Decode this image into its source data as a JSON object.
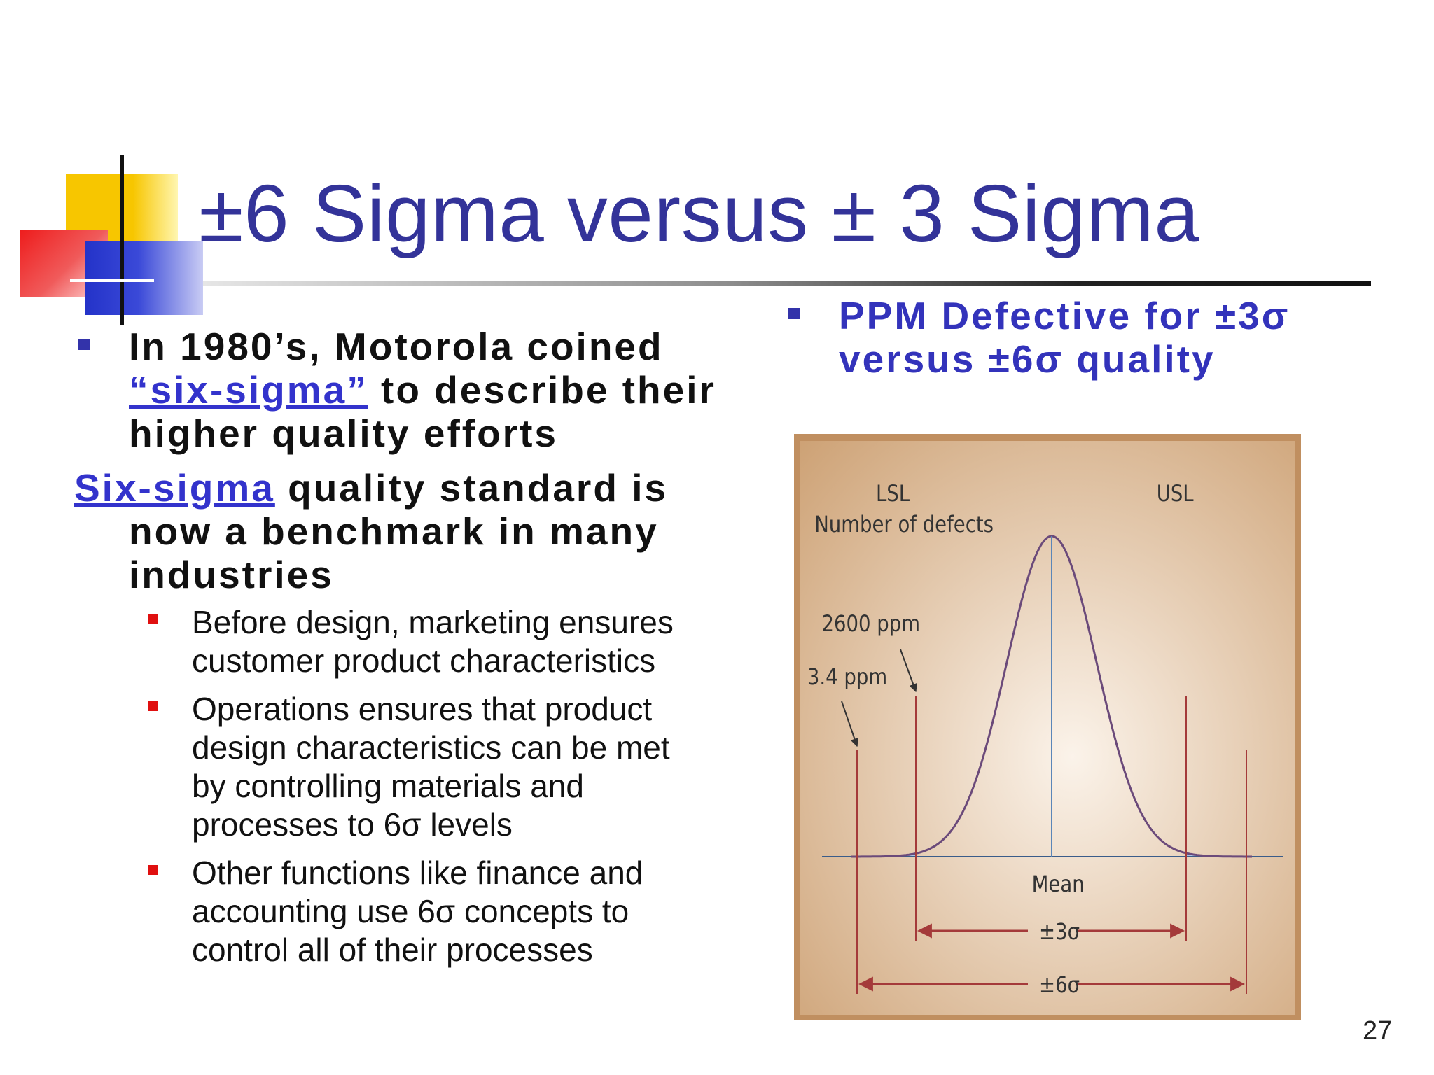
{
  "slide": {
    "title": "±6 Sigma versus ± 3 Sigma",
    "page_number": "27"
  },
  "left": {
    "bullet1": {
      "line1": "In 1980’s, Motorola coined",
      "link": "“six-sigma”",
      "line2_rest": " to describe their",
      "line3": "higher quality efforts"
    },
    "para2": {
      "link": "Six-sigma",
      "line1_rest": " quality standard is",
      "line2": "now a benchmark in many",
      "line3": "industries"
    },
    "subbullets": [
      {
        "lines": [
          "Before design, marketing ensures",
          "customer product characteristics"
        ]
      },
      {
        "lines": [
          "Operations ensures that product",
          "design characteristics can be met",
          "by controlling materials and",
          "processes to 6σ levels"
        ]
      },
      {
        "lines": [
          "Other functions like finance and",
          "accounting use 6σ concepts to",
          "control all of their processes"
        ]
      }
    ]
  },
  "right": {
    "heading_line1": "PPM Defective for ±3σ",
    "heading_line2": "versus ±6σ  quality"
  },
  "figure": {
    "labels": {
      "lsl": "LSL",
      "usl": "USL",
      "defects": "Number of defects",
      "ppm_2600": "2600 ppm",
      "ppm_3_4": "3.4 ppm",
      "mean": "Mean",
      "pm3": "±3σ",
      "pm6": "±6σ"
    },
    "colors": {
      "background_light": "#fbf3ea",
      "background_dark": "#c99a6a",
      "curve": "#6b4a7a",
      "tail_fill": "#a9c3e6",
      "arrow": "#a43a3a"
    }
  }
}
